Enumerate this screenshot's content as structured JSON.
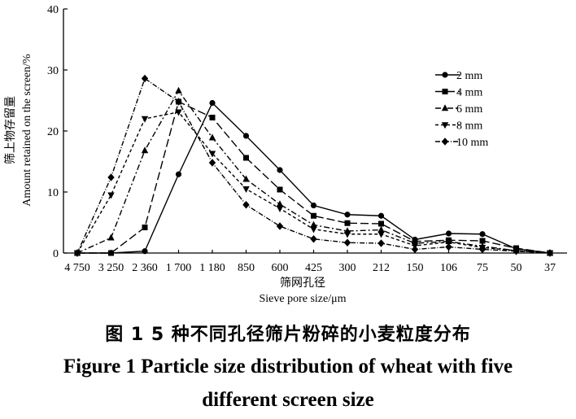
{
  "chart_data": {
    "type": "line",
    "xlabel_cn": "筛网孔径",
    "xlabel": "Sieve pore size/μm",
    "ylabel_cn": "筛上物存留量",
    "ylabel": "Amount retained on the screen/%",
    "ylim": [
      0,
      40
    ],
    "yticks": [
      0,
      10,
      20,
      30,
      40
    ],
    "categories": [
      "4 750",
      "3 250",
      "2 360",
      "1 700",
      "1 180",
      "850",
      "600",
      "425",
      "300",
      "212",
      "150",
      "106",
      "75",
      "50",
      "37"
    ],
    "legend_position": "top-right",
    "series": [
      {
        "name": "2 mm",
        "marker": "circle",
        "dash": "",
        "values": [
          0,
          0,
          0.3,
          12.9,
          24.6,
          19.2,
          13.6,
          7.8,
          6.3,
          6.1,
          2.2,
          3.2,
          3.1,
          0.7,
          0
        ]
      },
      {
        "name": "4 mm",
        "marker": "square",
        "dash": "10,4",
        "values": [
          0,
          0,
          4.2,
          24.8,
          22.2,
          15.6,
          10.4,
          6.1,
          4.9,
          4.8,
          1.9,
          2.1,
          2.0,
          0.8,
          0
        ]
      },
      {
        "name": "6 mm",
        "marker": "triangle-up",
        "dash": "7,3,2,3",
        "values": [
          0,
          2.5,
          16.8,
          26.6,
          18.9,
          12.1,
          8.0,
          4.6,
          3.6,
          3.8,
          1.6,
          1.9,
          1.1,
          0.4,
          0
        ]
      },
      {
        "name": "8 mm",
        "marker": "triangle-down",
        "dash": "4,3",
        "values": [
          0,
          9.5,
          22.0,
          23.1,
          16.3,
          10.5,
          7.3,
          3.9,
          3.1,
          3.1,
          1.2,
          1.8,
          0.9,
          0.4,
          0
        ]
      },
      {
        "name": "10 mm",
        "marker": "diamond",
        "dash": "6,2,1,2",
        "values": [
          0,
          12.4,
          28.6,
          24.8,
          14.8,
          7.9,
          4.4,
          2.3,
          1.7,
          1.6,
          0.6,
          1.0,
          0.6,
          0.3,
          0
        ]
      }
    ]
  },
  "caption": {
    "cn": "图 1    5 种不同孔径筛片粉碎的小麦粒度分布",
    "en_line1": "Figure 1    Particle size distribution of wheat with five",
    "en_line2": "different screen size"
  }
}
